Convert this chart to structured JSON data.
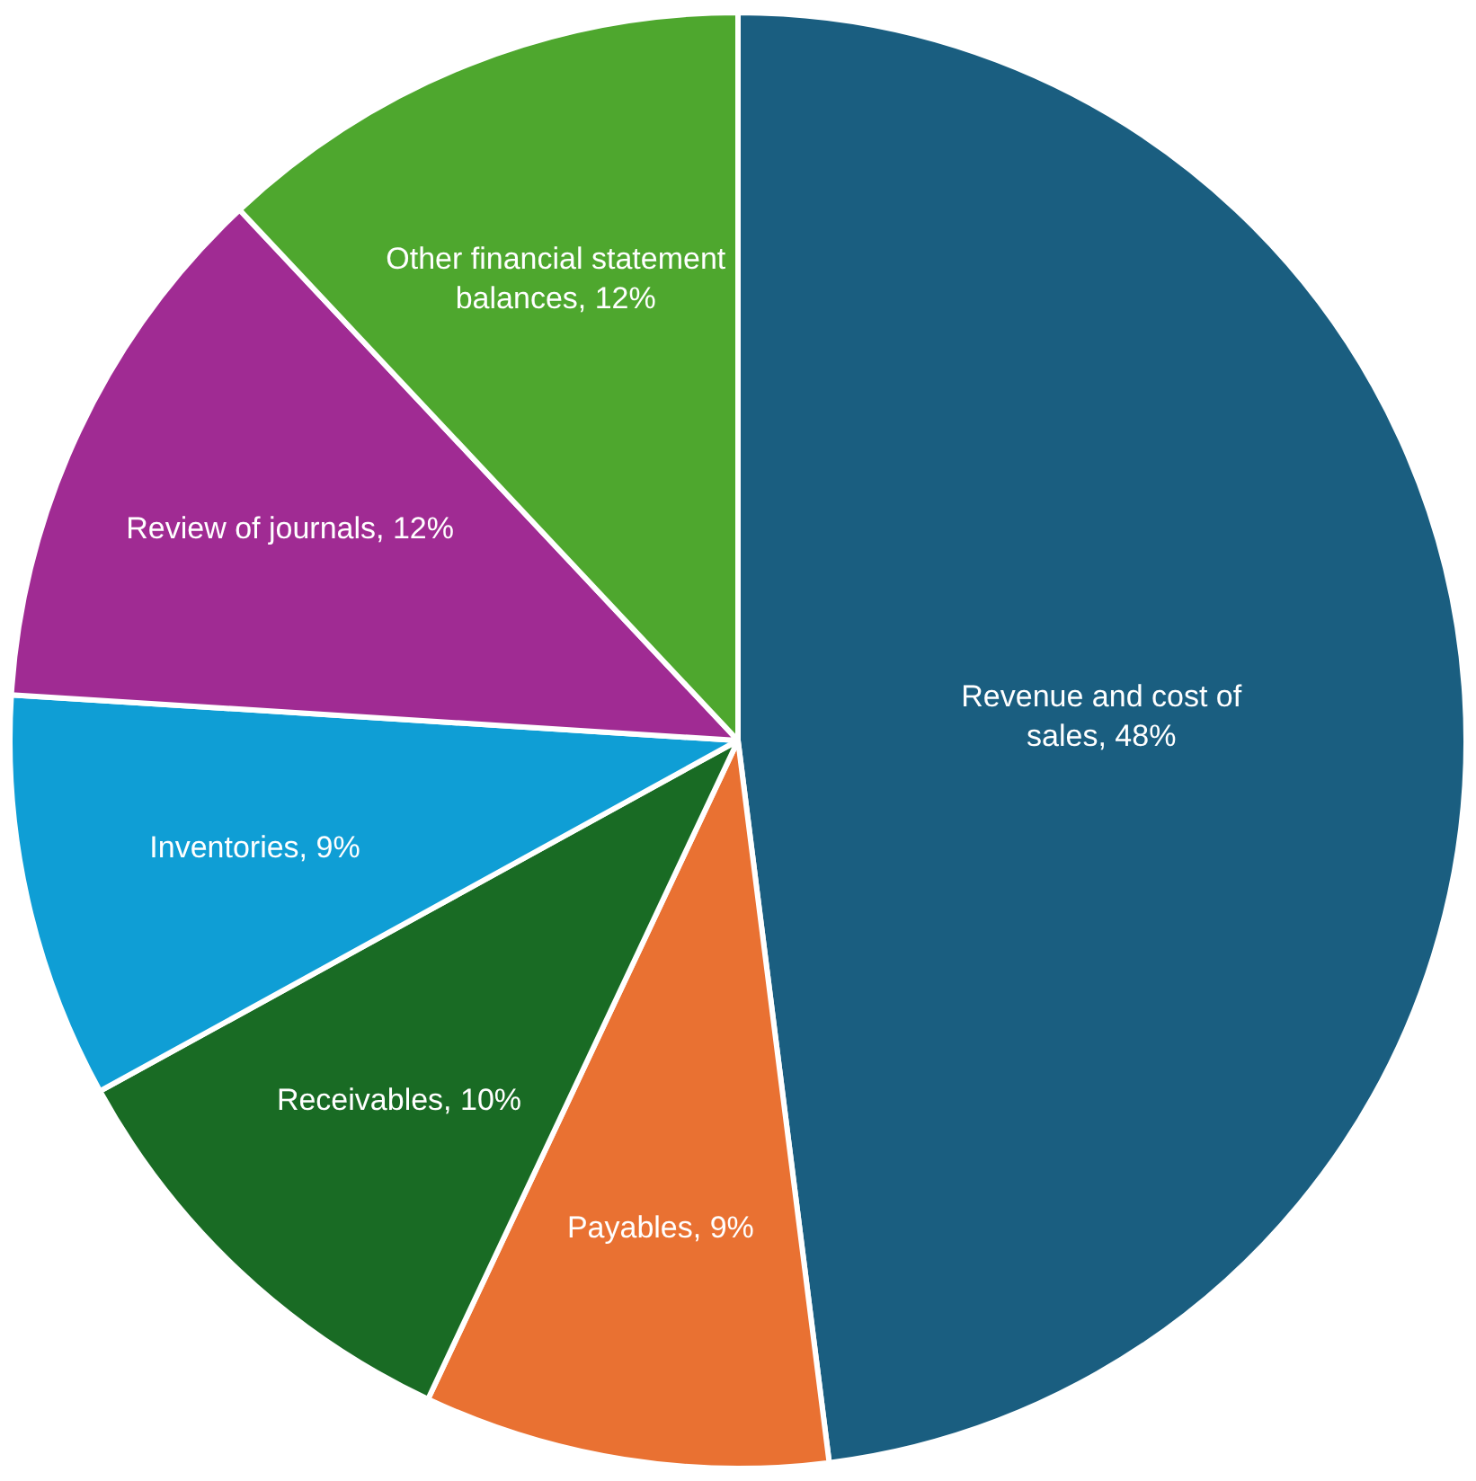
{
  "chart_data": {
    "type": "pie",
    "categories": [
      "Revenue and cost of sales",
      "Payables",
      "Receivables",
      "Inventories",
      "Review of journals",
      "Other financial statement balances"
    ],
    "values": [
      48,
      9,
      10,
      9,
      12,
      12
    ],
    "value_labels": [
      "48%",
      "9%",
      "10%",
      "9%",
      "12%",
      "12%"
    ],
    "colors": [
      "#1a5e80",
      "#e97132",
      "#196b24",
      "#0f9ed5",
      "#a02b93",
      "#4ea72e"
    ],
    "legend": false
  }
}
